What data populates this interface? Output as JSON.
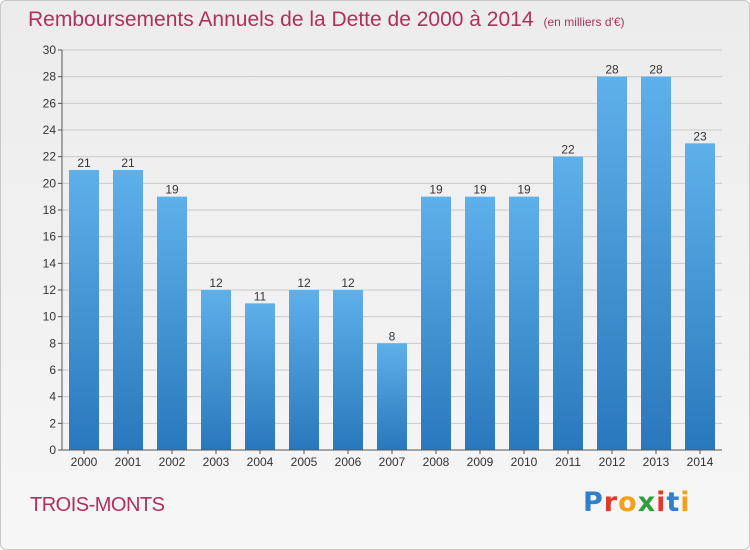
{
  "header": {
    "title": "Remboursements Annuels de la Dette de 2000 à 2014",
    "unit": "(en milliers d'€)"
  },
  "footer": {
    "town": "TROIS-MONTS",
    "logo": "Proxiti"
  },
  "colors": {
    "title": "#b0305a",
    "bar_top": "#5eb0ea",
    "bar_bottom": "#2a78bc"
  },
  "chart_data": {
    "type": "bar",
    "categories": [
      "2000",
      "2001",
      "2002",
      "2003",
      "2004",
      "2005",
      "2006",
      "2007",
      "2008",
      "2009",
      "2010",
      "2011",
      "2012",
      "2013",
      "2014"
    ],
    "values": [
      21,
      21,
      19,
      12,
      11,
      12,
      12,
      8,
      19,
      19,
      19,
      22,
      28,
      28,
      23
    ],
    "ylim": [
      0,
      30
    ],
    "yticks": [
      0,
      2,
      4,
      6,
      8,
      10,
      12,
      14,
      16,
      18,
      20,
      22,
      24,
      26,
      28,
      30
    ],
    "grid": true,
    "data_labels": true
  }
}
